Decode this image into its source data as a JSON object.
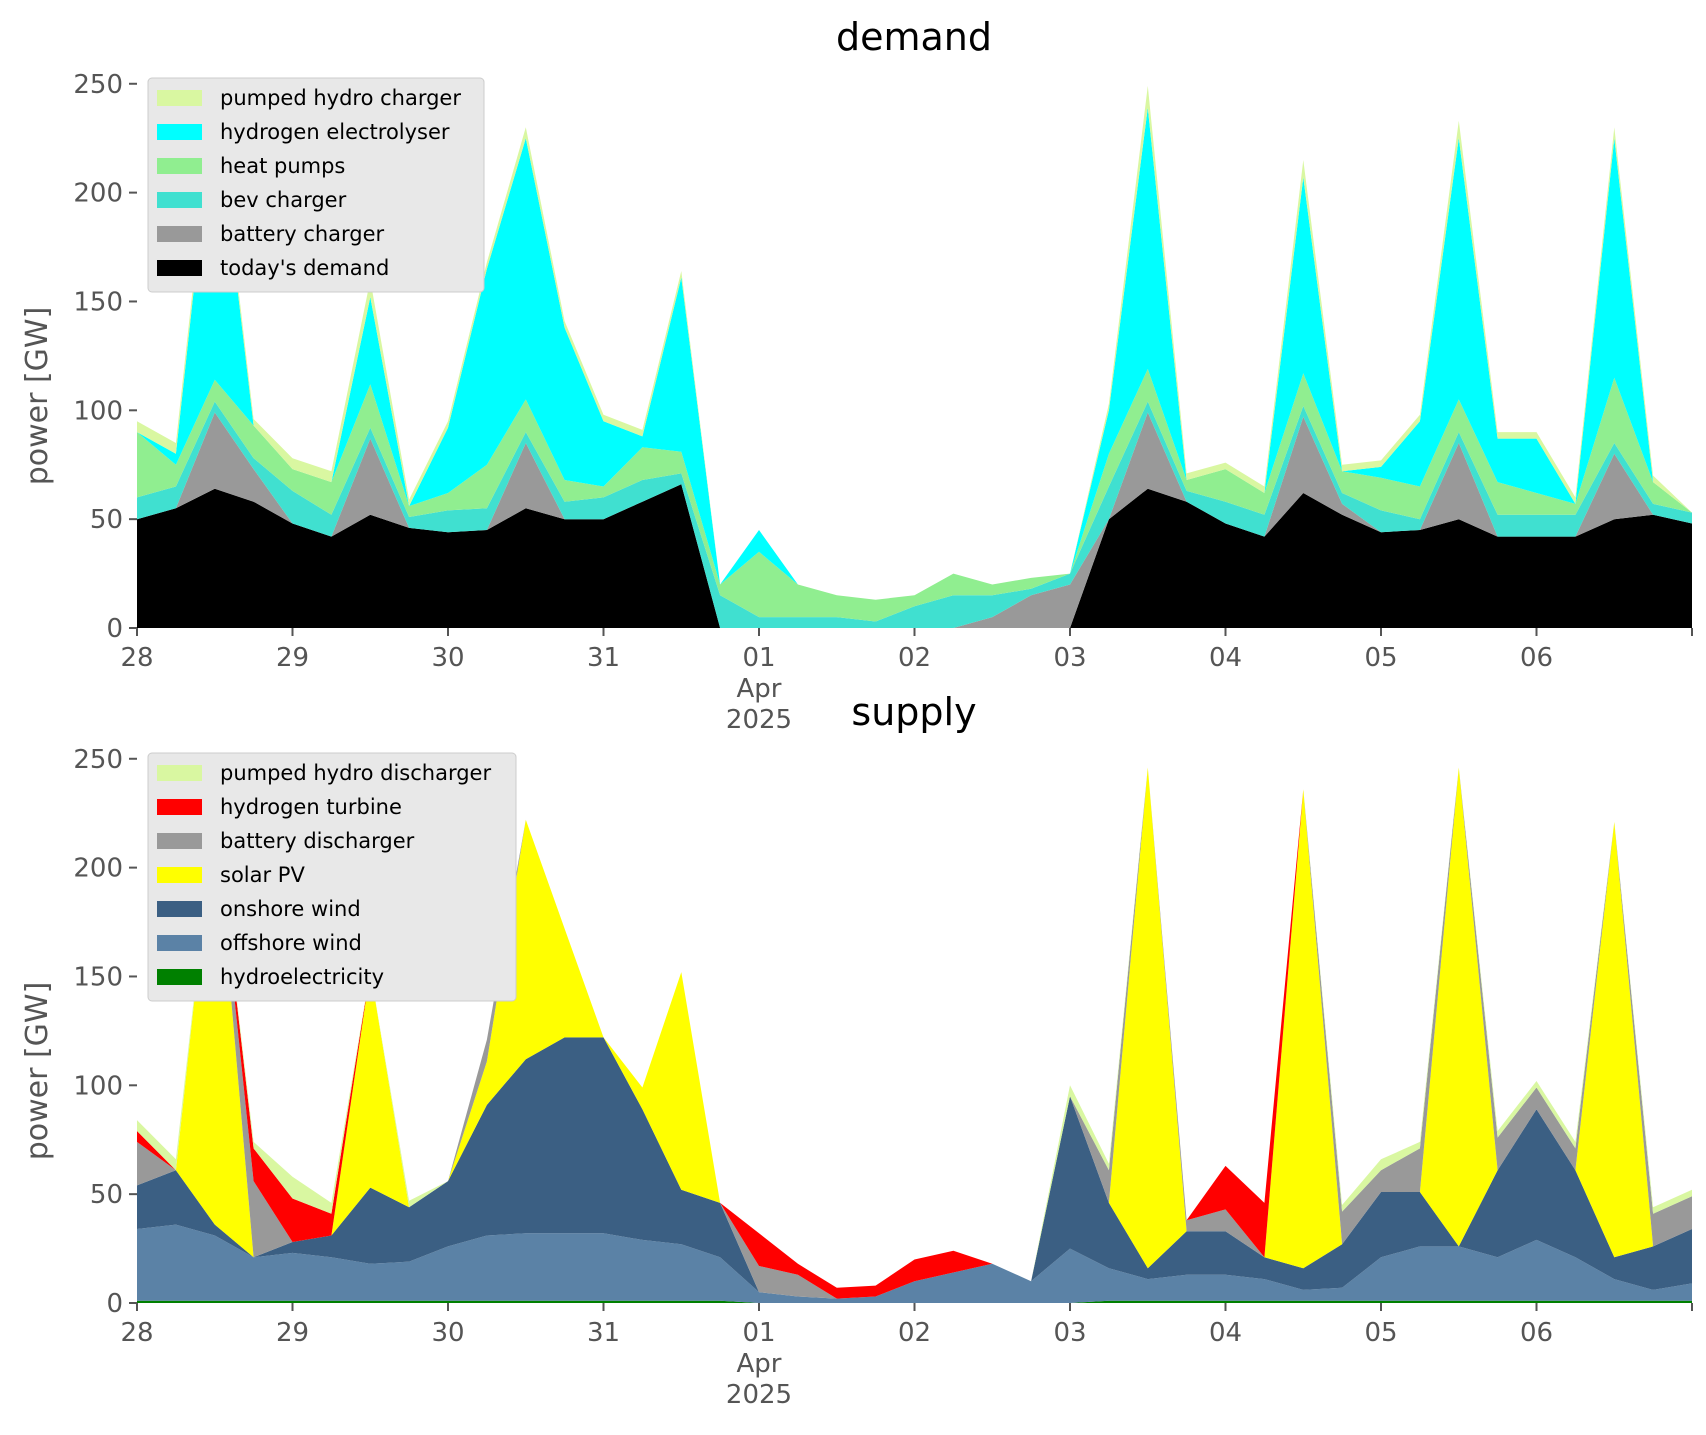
{
  "chart_data": [
    {
      "type": "area",
      "title": "demand",
      "ylabel": "power [GW]",
      "ylim": [
        0,
        260
      ],
      "xlim": [
        "2025-03-28",
        "2025-04-07"
      ],
      "grid": false,
      "legend": "top-left",
      "x_ticks": [
        "28",
        "29",
        "30",
        "31",
        "01",
        "02",
        "03",
        "04",
        "05",
        "06"
      ],
      "x_subticks": [
        "Apr",
        "2025"
      ],
      "y_ticks": [
        "0",
        "50",
        "100",
        "150",
        "200",
        "250"
      ],
      "x": [
        "03-28 00:00",
        "03-28 06:00",
        "03-28 12:00",
        "03-28 18:00",
        "03-29 00:00",
        "03-29 06:00",
        "03-29 12:00",
        "03-29 18:00",
        "03-30 00:00",
        "03-30 06:00",
        "03-30 12:00",
        "03-30 18:00",
        "03-31 00:00",
        "03-31 06:00",
        "03-31 12:00",
        "03-31 18:00",
        "04-01 00:00",
        "04-01 06:00",
        "04-01 12:00",
        "04-01 18:00",
        "04-02 00:00",
        "04-02 06:00",
        "04-02 12:00",
        "04-02 18:00",
        "04-03 00:00",
        "04-03 06:00",
        "04-03 12:00",
        "04-03 18:00",
        "04-04 00:00",
        "04-04 06:00",
        "04-04 12:00",
        "04-04 18:00",
        "04-05 00:00",
        "04-05 06:00",
        "04-05 12:00",
        "04-05 18:00",
        "04-06 00:00",
        "04-06 06:00",
        "04-06 12:00",
        "04-06 18:00",
        "04-07 00:00"
      ],
      "series": [
        {
          "name": "today's demand",
          "color": "#000000",
          "values": [
            50,
            55,
            64,
            58,
            48,
            42,
            52,
            46,
            44,
            45,
            55,
            50,
            50,
            58,
            66,
            0,
            0,
            0,
            0,
            0,
            0,
            0,
            0,
            0,
            0,
            50,
            64,
            58,
            48,
            42,
            62,
            52,
            44,
            45,
            50,
            42,
            42,
            42,
            50,
            52,
            48
          ]
        },
        {
          "name": "battery charger",
          "color": "#999999",
          "values": [
            0,
            0,
            35,
            15,
            0,
            0,
            35,
            0,
            0,
            0,
            30,
            0,
            0,
            0,
            0,
            0,
            0,
            0,
            0,
            0,
            0,
            0,
            5,
            15,
            20,
            0,
            35,
            0,
            0,
            0,
            35,
            5,
            0,
            0,
            35,
            0,
            0,
            0,
            30,
            0,
            0
          ]
        },
        {
          "name": "bev charger",
          "color": "#40e0d0",
          "values": [
            10,
            10,
            5,
            5,
            15,
            10,
            5,
            5,
            10,
            10,
            5,
            8,
            10,
            10,
            5,
            15,
            5,
            5,
            5,
            3,
            10,
            15,
            10,
            3,
            5,
            15,
            5,
            5,
            10,
            10,
            5,
            5,
            10,
            5,
            5,
            10,
            10,
            10,
            5,
            5,
            5
          ]
        },
        {
          "name": "heat pumps",
          "color": "#90ee90",
          "values": [
            30,
            10,
            10,
            15,
            10,
            15,
            20,
            5,
            8,
            20,
            15,
            10,
            5,
            15,
            10,
            5,
            30,
            15,
            10,
            10,
            5,
            10,
            5,
            5,
            0,
            15,
            15,
            5,
            15,
            10,
            15,
            10,
            15,
            15,
            15,
            15,
            10,
            5,
            30,
            10,
            0
          ]
        },
        {
          "name": "hydrogen electrolyser",
          "color": "#00ffff",
          "values": [
            0,
            5,
            130,
            0,
            0,
            0,
            40,
            0,
            30,
            90,
            120,
            70,
            30,
            5,
            80,
            0,
            10,
            0,
            0,
            0,
            0,
            0,
            0,
            0,
            0,
            20,
            120,
            0,
            0,
            0,
            90,
            0,
            5,
            30,
            120,
            20,
            25,
            0,
            110,
            0,
            0
          ]
        },
        {
          "name": "pumped hydro charger",
          "color": "#d9f7a1",
          "values": [
            5,
            5,
            5,
            3,
            5,
            5,
            8,
            3,
            3,
            3,
            5,
            3,
            3,
            3,
            3,
            0,
            0,
            0,
            0,
            0,
            0,
            0,
            0,
            0,
            0,
            3,
            10,
            3,
            3,
            3,
            8,
            3,
            3,
            3,
            8,
            3,
            3,
            3,
            5,
            3,
            0
          ]
        }
      ]
    },
    {
      "type": "area",
      "title": "supply",
      "ylabel": "power [GW]",
      "ylim": [
        0,
        260
      ],
      "xlim": [
        "2025-03-28",
        "2025-04-07"
      ],
      "grid": false,
      "legend": "top-left",
      "x_ticks": [
        "28",
        "29",
        "30",
        "31",
        "01",
        "02",
        "03",
        "04",
        "05",
        "06"
      ],
      "x_subticks": [
        "Apr",
        "2025"
      ],
      "y_ticks": [
        "0",
        "50",
        "100",
        "150",
        "200",
        "250"
      ],
      "x": [
        "03-28 00:00",
        "03-28 06:00",
        "03-28 12:00",
        "03-28 18:00",
        "03-29 00:00",
        "03-29 06:00",
        "03-29 12:00",
        "03-29 18:00",
        "03-30 00:00",
        "03-30 06:00",
        "03-30 12:00",
        "03-30 18:00",
        "03-31 00:00",
        "03-31 06:00",
        "03-31 12:00",
        "03-31 18:00",
        "04-01 00:00",
        "04-01 06:00",
        "04-01 12:00",
        "04-01 18:00",
        "04-02 00:00",
        "04-02 06:00",
        "04-02 12:00",
        "04-02 18:00",
        "04-03 00:00",
        "04-03 06:00",
        "04-03 12:00",
        "04-03 18:00",
        "04-04 00:00",
        "04-04 06:00",
        "04-04 12:00",
        "04-04 18:00",
        "04-05 00:00",
        "04-05 06:00",
        "04-05 12:00",
        "04-05 18:00",
        "04-06 00:00",
        "04-06 06:00",
        "04-06 12:00",
        "04-06 18:00",
        "04-07 00:00"
      ],
      "series": [
        {
          "name": "hydroelectricity",
          "color": "#008000",
          "values": [
            1,
            1,
            1,
            1,
            1,
            1,
            1,
            1,
            1,
            1,
            1,
            1,
            1,
            1,
            1,
            1,
            0,
            0,
            0,
            0,
            0,
            0,
            0,
            0,
            0,
            1,
            1,
            1,
            1,
            1,
            1,
            1,
            1,
            1,
            1,
            1,
            1,
            1,
            1,
            1,
            1
          ]
        },
        {
          "name": "offshore wind",
          "color": "#5b82a6",
          "values": [
            33,
            35,
            30,
            20,
            22,
            20,
            17,
            18,
            25,
            30,
            31,
            31,
            31,
            28,
            26,
            20,
            5,
            3,
            2,
            3,
            10,
            14,
            18,
            10,
            25,
            15,
            10,
            12,
            12,
            10,
            5,
            6,
            20,
            25,
            25,
            20,
            28,
            20,
            10,
            5,
            8
          ]
        },
        {
          "name": "onshore wind",
          "color": "#3b5f83",
          "values": [
            20,
            25,
            5,
            0,
            5,
            10,
            35,
            25,
            30,
            60,
            80,
            90,
            90,
            60,
            25,
            25,
            0,
            0,
            0,
            0,
            0,
            0,
            0,
            0,
            70,
            30,
            5,
            20,
            20,
            10,
            10,
            20,
            30,
            25,
            0,
            40,
            60,
            40,
            10,
            20,
            25
          ]
        },
        {
          "name": "solar PV",
          "color": "#ffff00",
          "values": [
            0,
            0,
            190,
            0,
            0,
            0,
            100,
            0,
            0,
            20,
            110,
            50,
            0,
            10,
            100,
            0,
            0,
            0,
            0,
            0,
            0,
            0,
            0,
            0,
            0,
            0,
            230,
            0,
            0,
            0,
            220,
            0,
            0,
            0,
            220,
            0,
            0,
            0,
            200,
            0,
            0
          ]
        },
        {
          "name": "battery discharger",
          "color": "#999999",
          "values": [
            20,
            0,
            0,
            35,
            0,
            0,
            0,
            0,
            0,
            10,
            0,
            0,
            0,
            0,
            0,
            0,
            12,
            10,
            0,
            0,
            0,
            0,
            0,
            0,
            0,
            15,
            0,
            5,
            10,
            0,
            0,
            15,
            10,
            20,
            0,
            15,
            10,
            10,
            0,
            15,
            15
          ]
        },
        {
          "name": "hydrogen turbine",
          "color": "#ff0000",
          "values": [
            5,
            0,
            0,
            15,
            20,
            10,
            0,
            0,
            0,
            0,
            0,
            0,
            0,
            0,
            0,
            0,
            15,
            5,
            5,
            5,
            10,
            10,
            0,
            0,
            0,
            0,
            0,
            0,
            20,
            25,
            0,
            0,
            0,
            0,
            0,
            0,
            0,
            0,
            0,
            0,
            0
          ]
        },
        {
          "name": "pumped hydro discharger",
          "color": "#d9f7a1",
          "values": [
            5,
            5,
            0,
            3,
            10,
            5,
            0,
            3,
            0,
            0,
            0,
            0,
            0,
            0,
            0,
            0,
            0,
            0,
            0,
            0,
            0,
            0,
            0,
            0,
            5,
            3,
            0,
            0,
            0,
            0,
            0,
            3,
            5,
            3,
            0,
            3,
            3,
            3,
            0,
            3,
            3
          ]
        }
      ]
    }
  ]
}
